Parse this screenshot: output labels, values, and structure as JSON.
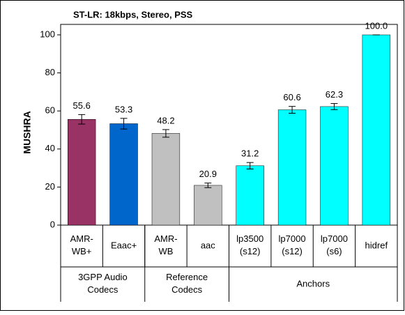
{
  "chart_data": {
    "type": "bar",
    "title": "ST-LR: 18kbps, Stereo, PSS",
    "y_label": "MUSHRA",
    "categories": [
      "AMR-\nWB+",
      "Eaac+",
      "AMR-\nWB",
      "aac",
      "lp3500\n(s12)",
      "lp7000\n(s12)",
      "lp7000\n(s6)",
      "hidref"
    ],
    "values": [
      55.6,
      53.3,
      48.2,
      20.9,
      31.2,
      60.6,
      62.3,
      100.0
    ],
    "value_labels": [
      "55.6",
      "53.3",
      "48.2",
      "20.9",
      "31.2",
      "60.6",
      "62.3",
      "100.0"
    ],
    "errors": [
      2.5,
      2.8,
      2.0,
      1.2,
      1.7,
      1.8,
      1.6,
      0
    ],
    "colors": [
      "#993366",
      "#0066cc",
      "#c0c0c0",
      "#c0c0c0",
      "#00ffff",
      "#00ffff",
      "#00ffff",
      "#00ffff"
    ],
    "groups": [
      {
        "label": "3GPP Audio\nCodecs",
        "span": 2
      },
      {
        "label": "Reference\nCodecs",
        "span": 2
      },
      {
        "label": "Anchors",
        "span": 4
      }
    ],
    "ylim": [
      0,
      100
    ],
    "yticks": [
      0,
      20,
      40,
      60,
      80,
      100
    ],
    "grid": false
  }
}
